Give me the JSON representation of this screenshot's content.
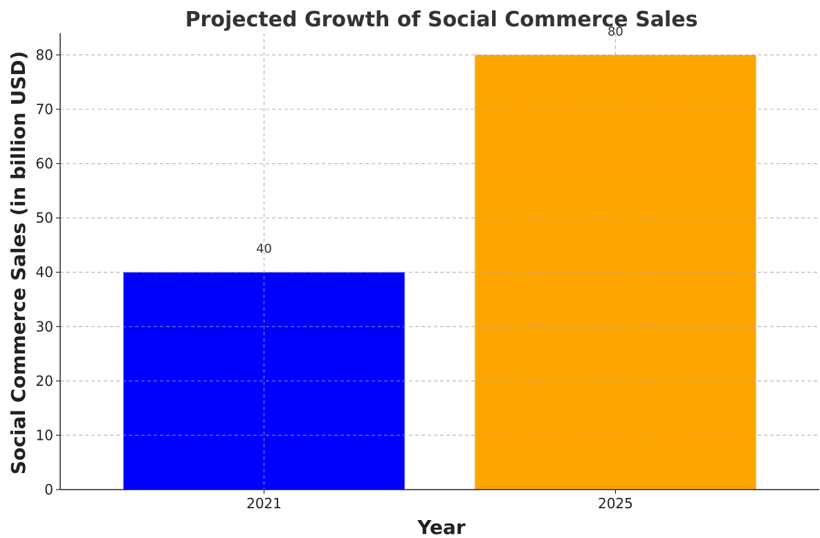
{
  "chart_data": {
    "type": "bar",
    "title": "Projected Growth of Social Commerce Sales",
    "xlabel": "Year",
    "ylabel": "Social Commerce Sales (in billion USD)",
    "categories": [
      "2021",
      "2025"
    ],
    "values": [
      40,
      80
    ],
    "data_labels": [
      "40",
      "80"
    ],
    "bar_colors": [
      "#0000ff",
      "#ffa500"
    ],
    "ylim": [
      0,
      84
    ],
    "yticks": [
      0,
      10,
      20,
      30,
      40,
      50,
      60,
      70,
      80
    ],
    "ytick_labels": [
      "0",
      "10",
      "20",
      "30",
      "40",
      "50",
      "60",
      "70",
      "80"
    ],
    "grid": true
  }
}
